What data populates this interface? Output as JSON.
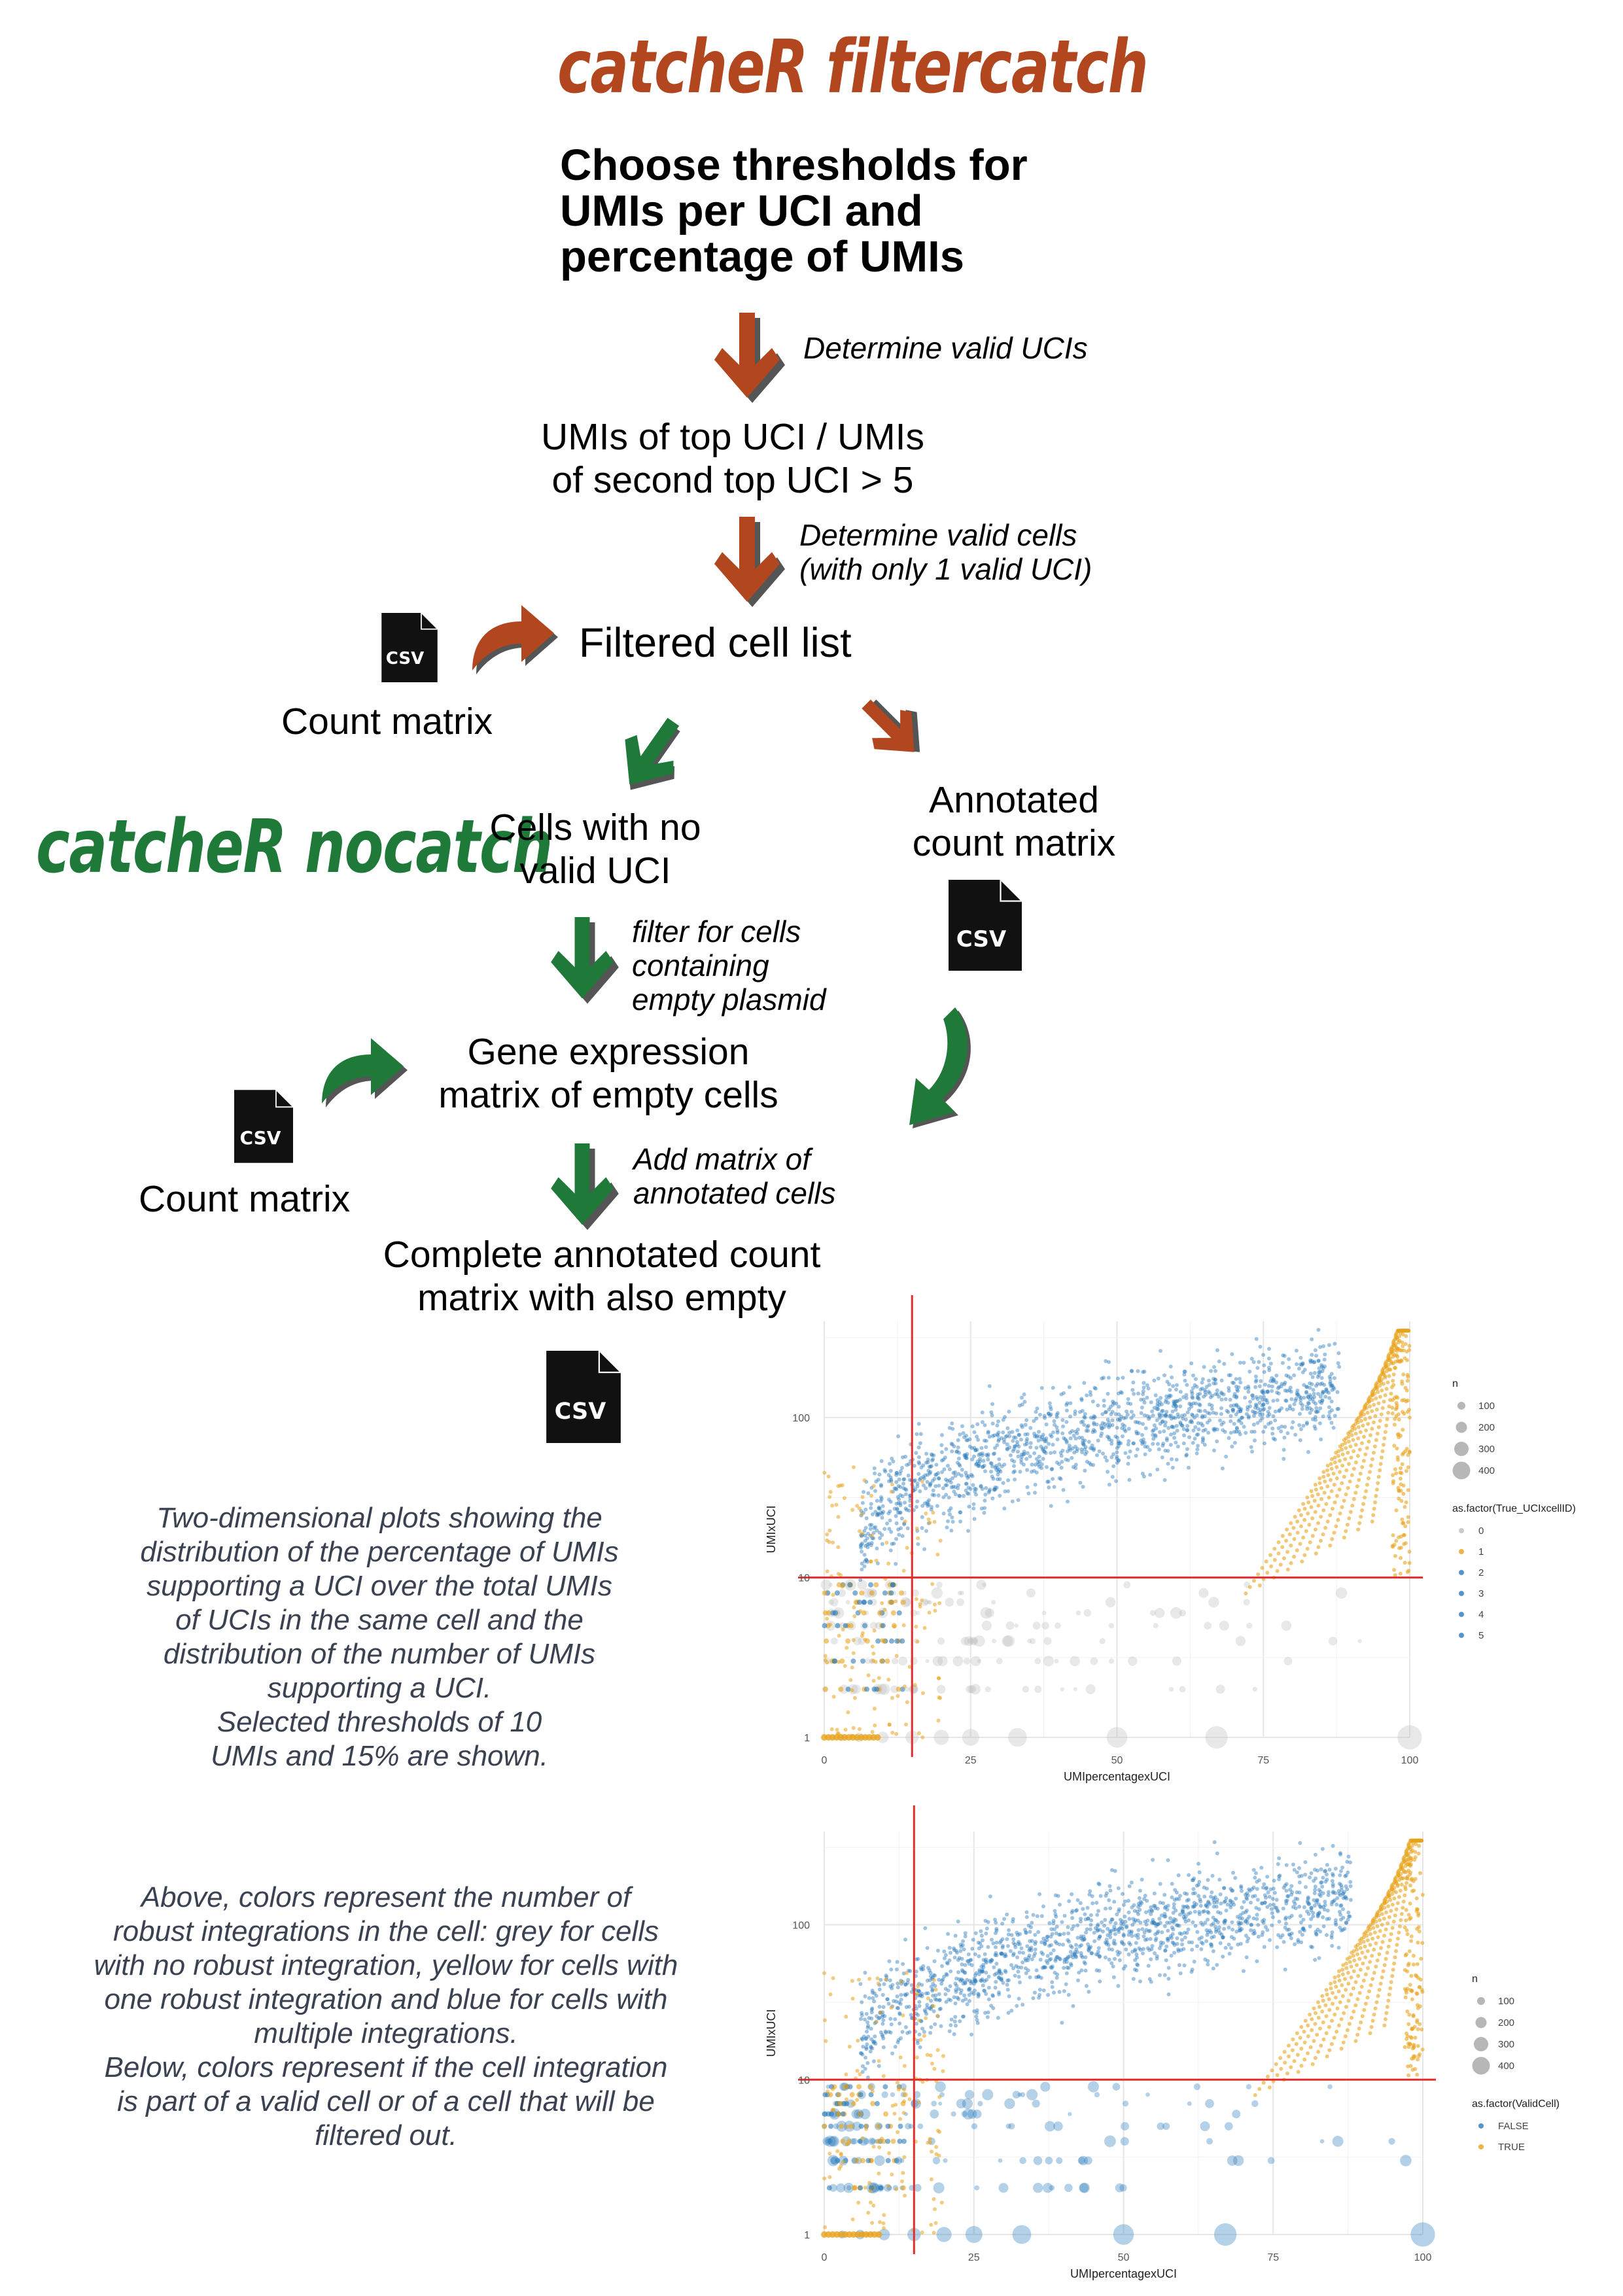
{
  "filtercatch": {
    "brand": "catcheR filtercatch",
    "headline": [
      "Choose thresholds for",
      "UMIs per UCI and",
      "percentage of UMIs"
    ],
    "step_valid_ucis": "Determine valid UCIs",
    "rule": [
      "UMIs of top UCI / UMIs",
      "of second top UCI > 5"
    ],
    "step_valid_cells": [
      "Determine valid cells",
      "(with only 1 valid UCI)"
    ],
    "filtered_list": "Filtered cell list",
    "count_matrix": "Count matrix",
    "annotated": [
      "Annotated",
      "count matrix"
    ]
  },
  "nocatch": {
    "brand": "catcheR nocatch",
    "no_uci": [
      "Cells with no",
      "valid UCI"
    ],
    "step_filter": [
      "filter for cells",
      "containing",
      "empty plasmid"
    ],
    "gene_expr": [
      "Gene expression",
      "matrix of empty cells"
    ],
    "count_matrix": "Count matrix",
    "step_add": [
      "Add matrix of",
      "annotated cells"
    ],
    "complete": [
      "Complete annotated count",
      "matrix with also empty"
    ]
  },
  "icons": {
    "file": "csv-file-icon",
    "file_label": "CSV",
    "arrow_down": "arrow-down-icon",
    "arrow_curved": "curved-arrow-icon"
  },
  "captions": {
    "top": [
      "Two-dimensional plots showing the",
      "distribution of the percentage of UMIs",
      "supporting a UCI over the total UMIs",
      "of UCIs in the same cell and the",
      "distribution of the number of UMIs",
      "supporting a UCI.",
      "Selected thresholds of 10",
      "UMIs and 15% are shown."
    ],
    "bottom": [
      "Above, colors represent the number of",
      "robust integrations in the cell: grey for cells",
      "with no robust integration, yellow for cells with",
      "one robust integration and blue for cells with",
      "multiple integrations.",
      "Below, colors represent if the cell integration",
      "is part of a valid cell or of a cell that will be",
      "filtered out."
    ]
  },
  "colors": {
    "red": "#b2461f",
    "green": "#1f7a3a",
    "blue": "#2b7bba",
    "yellow": "#e8a31c",
    "grey": "#bdbdbd",
    "threshold": "#e32d2d"
  },
  "chart_data": [
    {
      "type": "scatter",
      "xlabel": "UMIpercentagexUCI",
      "ylabel": "UMIxUCI",
      "x_ticks": [
        "0",
        "25",
        "50",
        "75",
        "100"
      ],
      "y_ticks": [
        "1",
        "10",
        "100"
      ],
      "xlim": [
        0,
        100
      ],
      "ylim": [
        1,
        400
      ],
      "y_scale": "log",
      "thresholds": {
        "x": 15,
        "y": 10
      },
      "size_legend": {
        "title": "n",
        "values": [
          "100",
          "200",
          "300",
          "400"
        ]
      },
      "color_legend": {
        "title": "as.factor(True_UCIxcellID)",
        "values": [
          "0",
          "1",
          "2",
          "3",
          "4",
          "5"
        ]
      },
      "series": [
        {
          "name": "0",
          "color": "#bdbdbd"
        },
        {
          "name": "1",
          "color": "#e8a31c"
        },
        {
          "name": "2",
          "color": "#2b7bba"
        },
        {
          "name": "3",
          "color": "#2b7bba"
        },
        {
          "name": "4",
          "color": "#2b7bba"
        },
        {
          "name": "5",
          "color": "#2b7bba"
        }
      ],
      "grid": true,
      "legend_position": "right"
    },
    {
      "type": "scatter",
      "xlabel": "UMIpercentagexUCI",
      "ylabel": "UMIxUCI",
      "x_ticks": [
        "0",
        "25",
        "50",
        "75",
        "100"
      ],
      "y_ticks": [
        "1",
        "10",
        "100"
      ],
      "xlim": [
        0,
        100
      ],
      "ylim": [
        1,
        400
      ],
      "y_scale": "log",
      "thresholds": {
        "x": 15,
        "y": 10
      },
      "size_legend": {
        "title": "n",
        "values": [
          "100",
          "200",
          "300",
          "400"
        ]
      },
      "color_legend": {
        "title": "as.factor(ValidCell)",
        "values": [
          "FALSE",
          "TRUE"
        ]
      },
      "series": [
        {
          "name": "FALSE",
          "color": "#2b7bba"
        },
        {
          "name": "TRUE",
          "color": "#e8a31c"
        }
      ],
      "grid": true,
      "legend_position": "right"
    }
  ]
}
